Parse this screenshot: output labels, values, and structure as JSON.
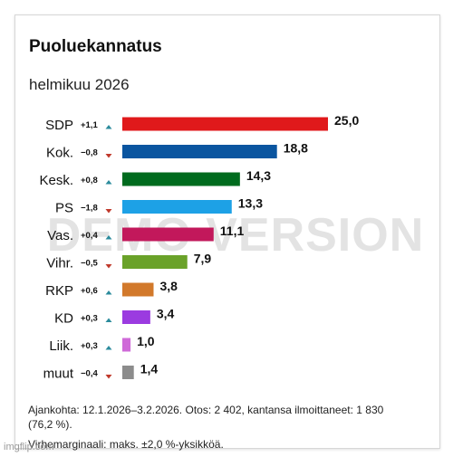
{
  "title": "Puoluekannatus",
  "subtitle": "helmikuu 2026",
  "watermark": "DEMO VERSION",
  "footnote1": "Ajankohta: 12.1.2026–3.2.2026. Otos: 2 402, kantansa ilmoittaneet: 1 830 (76,2 %).",
  "footnote2": "Virhemarginaali: maks. ±2,0 %-yksikköä.",
  "site_mark": "imgflip.com",
  "colors": {
    "up": "#2b8b9c",
    "down": "#c0392b"
  },
  "chart_data": {
    "type": "bar",
    "orientation": "horizontal",
    "title": "Puoluekannatus",
    "subtitle": "helmikuu 2026",
    "categories": [
      "SDP",
      "Kok.",
      "Kesk.",
      "PS",
      "Vas.",
      "Vihr.",
      "RKP",
      "KD",
      "Liik.",
      "muut"
    ],
    "values": [
      25.0,
      18.8,
      14.3,
      13.3,
      11.1,
      7.9,
      3.8,
      3.4,
      1.0,
      1.4
    ],
    "value_labels": [
      "25,0",
      "18,8",
      "14,3",
      "13,3",
      "11,1",
      "7,9",
      "3,8",
      "3,4",
      "1,0",
      "1,4"
    ],
    "changes": [
      "+1,1",
      "−0,8",
      "+0,8",
      "−1,8",
      "+0,4",
      "−0,5",
      "+0,6",
      "+0,3",
      "+0,3",
      "−0,4"
    ],
    "change_direction": [
      "up",
      "down",
      "up",
      "down",
      "up",
      "down",
      "up",
      "up",
      "up",
      "down"
    ],
    "bar_colors": [
      "#e0191b",
      "#0a55a0",
      "#006b1e",
      "#1da1e6",
      "#c2185b",
      "#6aa229",
      "#d2792b",
      "#9b3be0",
      "#cf6ad8",
      "#8c8c8c"
    ],
    "xlim": [
      0,
      25
    ]
  }
}
